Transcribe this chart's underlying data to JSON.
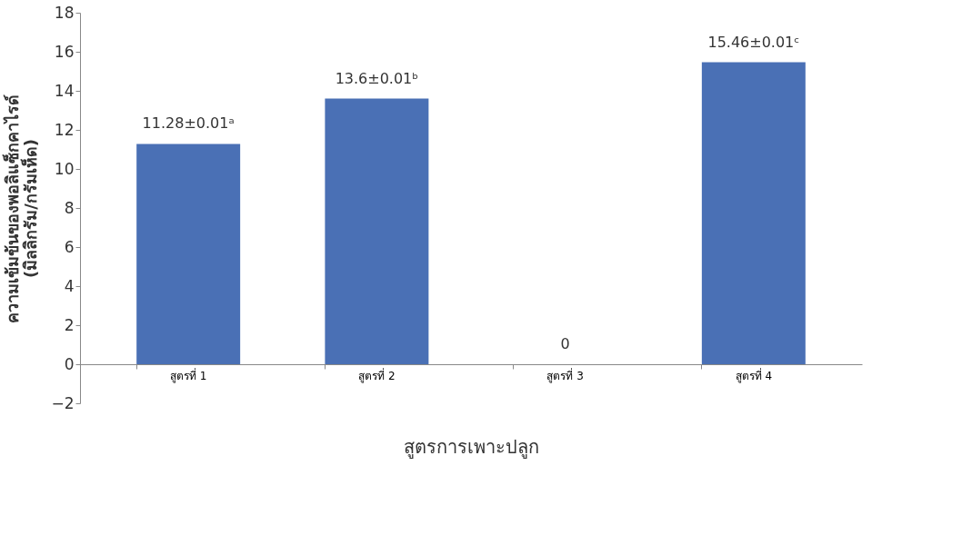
{
  "chart_data": {
    "type": "bar",
    "xlabel": "สูตรการเพาะปลูก",
    "ylabel": "ความเข้มข้นของพอลิแซ็กคาไรด์ (มิลลิกรัม/กรัมเห็ด)",
    "categories": [
      "สูตรที่ 1",
      "สูตรที่ 2",
      "สูตรที่ 3",
      "สูตรที่ 4"
    ],
    "values": [
      11.28,
      13.6,
      0,
      15.46
    ],
    "value_labels": [
      "11.28±0.01ᵃ",
      "13.6±0.01ᵇ",
      "0",
      "15.46±0.01ᶜ"
    ],
    "color": "#4a70b5",
    "ylim": [
      -2,
      18
    ],
    "yticks": [
      -2,
      0,
      2,
      4,
      6,
      8,
      10,
      12,
      14,
      16,
      18
    ],
    "grid": false
  }
}
